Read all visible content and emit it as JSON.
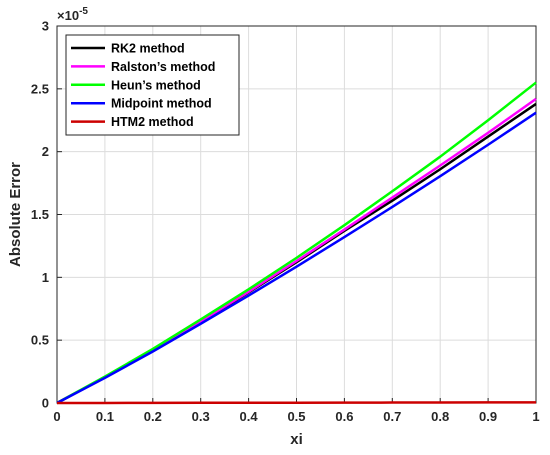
{
  "chart_data": {
    "type": "line",
    "title": "",
    "xlabel": "xi",
    "ylabel": "Absolute Error",
    "exponent_label": "×10",
    "exponent_power": "-5",
    "xlim": [
      0,
      1
    ],
    "ylim": [
      0,
      3
    ],
    "xticks": [
      "0",
      "0.1",
      "0.2",
      "0.3",
      "0.4",
      "0.5",
      "0.6",
      "0.7",
      "0.8",
      "0.9",
      "1"
    ],
    "yticks": [
      "0",
      "0.5",
      "1",
      "1.5",
      "2",
      "2.5",
      "3"
    ],
    "grid": true,
    "legend_position": "top-left",
    "x": [
      0,
      0.1,
      0.2,
      0.3,
      0.4,
      0.5,
      0.6,
      0.7,
      0.8,
      0.9,
      1.0
    ],
    "series": [
      {
        "name": "RK2 method",
        "color": "#000000",
        "values": [
          0,
          0.205,
          0.42,
          0.645,
          0.88,
          1.12,
          1.37,
          1.61,
          1.86,
          2.12,
          2.38
        ]
      },
      {
        "name": "Ralston’s method",
        "color": "#ff00ff",
        "values": [
          0,
          0.205,
          0.42,
          0.65,
          0.885,
          1.13,
          1.38,
          1.635,
          1.89,
          2.15,
          2.42
        ]
      },
      {
        "name": "Heun’s method",
        "color": "#00ff00",
        "values": [
          0,
          0.21,
          0.43,
          0.665,
          0.905,
          1.155,
          1.415,
          1.685,
          1.96,
          2.25,
          2.55
        ]
      },
      {
        "name": "Midpoint method",
        "color": "#0000ff",
        "values": [
          0,
          0.2,
          0.41,
          0.63,
          0.855,
          1.085,
          1.32,
          1.56,
          1.805,
          2.055,
          2.31
        ]
      },
      {
        "name": "HTM2 method",
        "color": "#cc0000",
        "values": [
          0,
          0.0005,
          0.001,
          0.0015,
          0.002,
          0.0025,
          0.003,
          0.0035,
          0.004,
          0.0045,
          0.005
        ]
      }
    ]
  }
}
